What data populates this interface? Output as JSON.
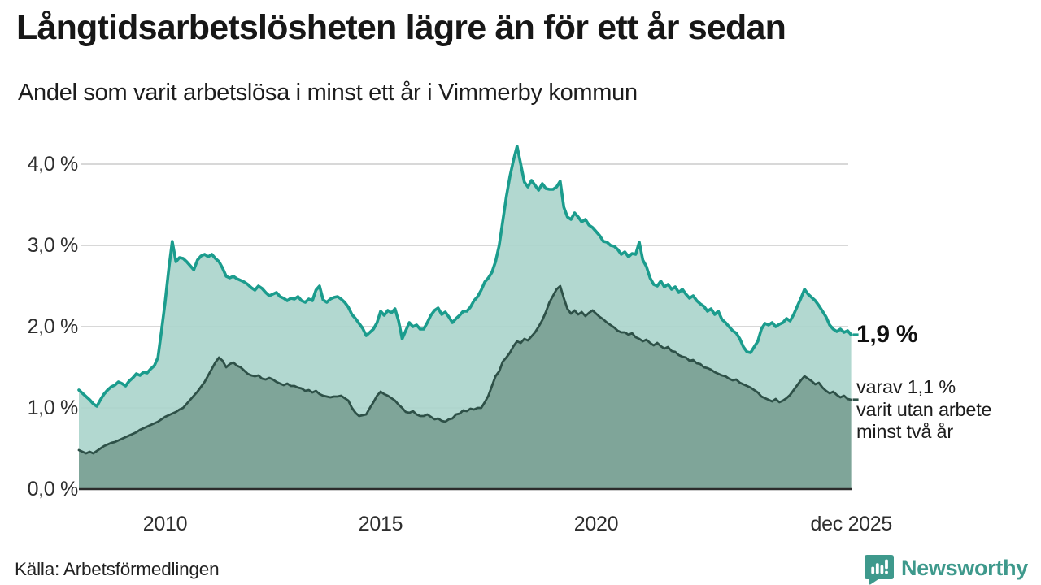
{
  "header": {
    "title": "Långtidsarbetslösheten lägre än för ett år sedan",
    "subtitle": "Andel som varit arbetslösa i minst ett år i Vimmerby kommun"
  },
  "annotations": {
    "latest_total_label": "1,9 %",
    "detail_lines": [
      "varav 1,1 %",
      "varit utan arbete",
      "minst två år"
    ]
  },
  "footer": {
    "source": "Källa: Arbetsförmedlingen",
    "brand_name": "Newsworthy",
    "brand_color": "#3e998c",
    "brand_icon": "newsworthy-bar-chart-speech-bubble-icon"
  },
  "chart_data": {
    "type": "area",
    "title": "Långtidsarbetslösheten lägre än för ett år sedan",
    "subtitle": "Andel som varit arbetslösa i minst ett år i Vimmerby kommun",
    "unit": "%",
    "x_unit": "year, monthly observations",
    "xlim": [
      2008.0,
      2025.917
    ],
    "ylim": [
      0,
      4.4
    ],
    "grid": true,
    "legend_position": "none",
    "style": {
      "grid_color": "#d8d8d8",
      "axis_color": "#2b2b2b",
      "background": "#ffffff"
    },
    "y_axis": {
      "ticks": [
        {
          "label": "4,0 %",
          "value": 4.0
        },
        {
          "label": "3,0 %",
          "value": 3.0
        },
        {
          "label": "2,0 %",
          "value": 2.0
        },
        {
          "label": "1,0 %",
          "value": 1.0
        },
        {
          "label": "0,0 %",
          "value": 0.0
        }
      ]
    },
    "x_axis": {
      "ticks": [
        {
          "label": "2010",
          "value": 2010
        },
        {
          "label": "2015",
          "value": 2015
        },
        {
          "label": "2020",
          "value": 2020
        },
        {
          "label": "dec 2025",
          "value": 2025.92
        }
      ]
    },
    "series": [
      {
        "id": "one-year",
        "name": "Andel arbetslösa minst ett år",
        "color": "#1b9c8d",
        "fill": "#abd5cc",
        "fill_opacity": 0.92,
        "stroke_width": 3.6,
        "latest_value": 1.9,
        "x_start": 2008.0,
        "step_months": 1,
        "values": [
          1.22,
          1.18,
          1.14,
          1.1,
          1.05,
          1.02,
          1.1,
          1.17,
          1.22,
          1.26,
          1.28,
          1.32,
          1.3,
          1.27,
          1.33,
          1.37,
          1.42,
          1.4,
          1.44,
          1.43,
          1.48,
          1.52,
          1.62,
          1.95,
          2.3,
          2.7,
          3.05,
          2.8,
          2.85,
          2.84,
          2.8,
          2.75,
          2.7,
          2.82,
          2.87,
          2.89,
          2.86,
          2.89,
          2.84,
          2.8,
          2.72,
          2.62,
          2.6,
          2.62,
          2.59,
          2.57,
          2.55,
          2.52,
          2.48,
          2.45,
          2.5,
          2.47,
          2.42,
          2.38,
          2.4,
          2.42,
          2.37,
          2.35,
          2.32,
          2.35,
          2.34,
          2.37,
          2.32,
          2.3,
          2.34,
          2.32,
          2.45,
          2.5,
          2.33,
          2.3,
          2.34,
          2.36,
          2.37,
          2.34,
          2.3,
          2.24,
          2.15,
          2.1,
          2.04,
          1.98,
          1.89,
          1.93,
          1.97,
          2.05,
          2.19,
          2.14,
          2.2,
          2.17,
          2.22,
          2.07,
          1.85,
          1.95,
          2.05,
          2.0,
          2.02,
          1.97,
          1.97,
          2.05,
          2.14,
          2.2,
          2.23,
          2.15,
          2.18,
          2.12,
          2.05,
          2.1,
          2.14,
          2.19,
          2.19,
          2.24,
          2.32,
          2.37,
          2.45,
          2.55,
          2.6,
          2.67,
          2.8,
          3.0,
          3.3,
          3.6,
          3.85,
          4.05,
          4.22,
          4.0,
          3.78,
          3.72,
          3.8,
          3.74,
          3.68,
          3.76,
          3.7,
          3.69,
          3.69,
          3.72,
          3.79,
          3.47,
          3.35,
          3.32,
          3.4,
          3.35,
          3.29,
          3.32,
          3.25,
          3.22,
          3.17,
          3.12,
          3.05,
          3.04,
          3.0,
          2.99,
          2.95,
          2.89,
          2.92,
          2.86,
          2.9,
          2.89,
          3.04,
          2.82,
          2.74,
          2.6,
          2.52,
          2.5,
          2.56,
          2.49,
          2.52,
          2.46,
          2.49,
          2.42,
          2.46,
          2.4,
          2.35,
          2.38,
          2.32,
          2.28,
          2.25,
          2.19,
          2.22,
          2.15,
          2.19,
          2.09,
          2.05,
          2.0,
          1.95,
          1.92,
          1.85,
          1.75,
          1.69,
          1.68,
          1.75,
          1.82,
          1.97,
          2.04,
          2.02,
          2.05,
          2.0,
          2.03,
          2.05,
          2.1,
          2.07,
          2.15,
          2.25,
          2.35,
          2.46,
          2.4,
          2.36,
          2.32,
          2.26,
          2.19,
          2.12,
          2.02,
          1.97,
          1.94,
          1.97,
          1.93,
          1.95,
          1.9
        ]
      },
      {
        "id": "two-year",
        "name": "Varav utan arbete minst två år",
        "color": "#2e5148",
        "fill": "#7ca296",
        "fill_opacity": 0.95,
        "stroke_width": 2.8,
        "latest_value": 1.1,
        "x_start": 2008.0,
        "step_months": 1,
        "values": [
          0.48,
          0.46,
          0.44,
          0.46,
          0.44,
          0.47,
          0.5,
          0.53,
          0.55,
          0.57,
          0.58,
          0.6,
          0.62,
          0.64,
          0.66,
          0.68,
          0.7,
          0.73,
          0.75,
          0.77,
          0.79,
          0.81,
          0.83,
          0.86,
          0.89,
          0.91,
          0.93,
          0.95,
          0.98,
          1.0,
          1.05,
          1.1,
          1.15,
          1.2,
          1.26,
          1.32,
          1.4,
          1.48,
          1.56,
          1.62,
          1.58,
          1.5,
          1.54,
          1.56,
          1.52,
          1.5,
          1.46,
          1.42,
          1.4,
          1.39,
          1.4,
          1.36,
          1.35,
          1.37,
          1.35,
          1.32,
          1.3,
          1.28,
          1.3,
          1.27,
          1.27,
          1.25,
          1.24,
          1.21,
          1.22,
          1.19,
          1.21,
          1.17,
          1.15,
          1.14,
          1.13,
          1.14,
          1.14,
          1.15,
          1.12,
          1.09,
          1.0,
          0.94,
          0.9,
          0.91,
          0.92,
          1.0,
          1.07,
          1.15,
          1.2,
          1.17,
          1.15,
          1.12,
          1.09,
          1.04,
          1.0,
          0.95,
          0.94,
          0.96,
          0.92,
          0.9,
          0.9,
          0.92,
          0.89,
          0.86,
          0.87,
          0.84,
          0.83,
          0.86,
          0.87,
          0.92,
          0.93,
          0.97,
          0.96,
          0.99,
          0.98,
          1.0,
          1.0,
          1.07,
          1.15,
          1.27,
          1.39,
          1.45,
          1.57,
          1.62,
          1.68,
          1.76,
          1.82,
          1.8,
          1.85,
          1.83,
          1.88,
          1.93,
          2.0,
          2.08,
          2.18,
          2.3,
          2.38,
          2.46,
          2.5,
          2.35,
          2.22,
          2.16,
          2.2,
          2.15,
          2.18,
          2.13,
          2.17,
          2.2,
          2.16,
          2.12,
          2.09,
          2.05,
          2.02,
          1.99,
          1.95,
          1.93,
          1.93,
          1.9,
          1.92,
          1.87,
          1.85,
          1.82,
          1.84,
          1.8,
          1.77,
          1.8,
          1.76,
          1.73,
          1.75,
          1.7,
          1.69,
          1.65,
          1.63,
          1.62,
          1.58,
          1.59,
          1.55,
          1.54,
          1.5,
          1.49,
          1.47,
          1.44,
          1.42,
          1.4,
          1.39,
          1.36,
          1.34,
          1.35,
          1.31,
          1.29,
          1.27,
          1.25,
          1.22,
          1.19,
          1.14,
          1.12,
          1.1,
          1.08,
          1.11,
          1.07,
          1.09,
          1.12,
          1.16,
          1.22,
          1.28,
          1.34,
          1.39,
          1.36,
          1.33,
          1.29,
          1.31,
          1.25,
          1.21,
          1.18,
          1.2,
          1.16,
          1.13,
          1.15,
          1.11,
          1.1
        ]
      }
    ]
  }
}
